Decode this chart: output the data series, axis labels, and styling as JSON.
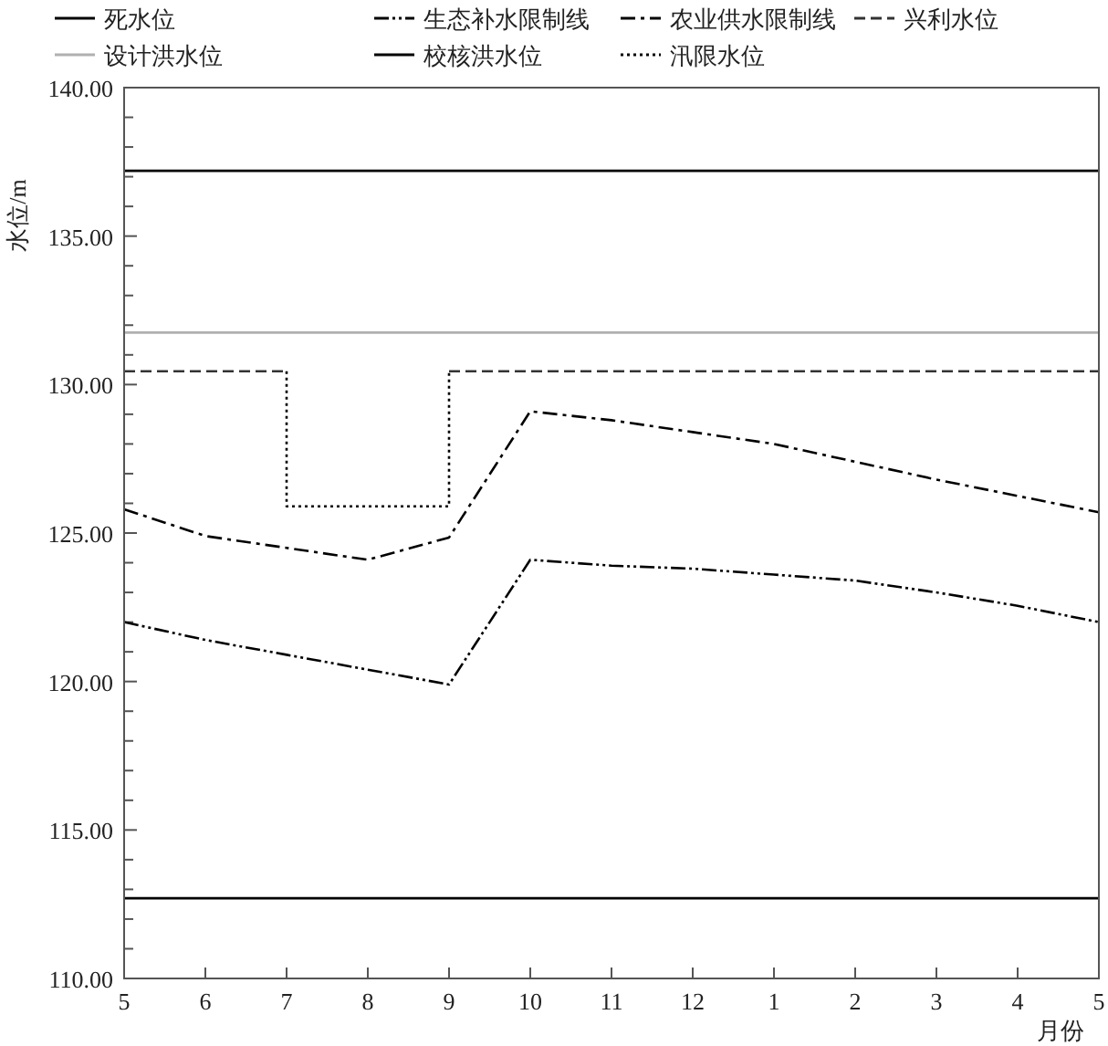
{
  "chart_data": {
    "type": "line",
    "ylabel": "水位/m",
    "xlabel": "月份",
    "categories": [
      "5",
      "6",
      "7",
      "8",
      "9",
      "10",
      "11",
      "12",
      "1",
      "2",
      "3",
      "4",
      "5"
    ],
    "ylim": [
      110,
      140
    ],
    "yticks": [
      {
        "value": 110,
        "label": "110.00"
      },
      {
        "value": 111,
        "label": null
      },
      {
        "value": 112,
        "label": null
      },
      {
        "value": 113,
        "label": null
      },
      {
        "value": 114,
        "label": null
      },
      {
        "value": 115,
        "label": "115.00"
      },
      {
        "value": 116,
        "label": null
      },
      {
        "value": 117,
        "label": null
      },
      {
        "value": 118,
        "label": null
      },
      {
        "value": 119,
        "label": null
      },
      {
        "value": 120,
        "label": "120.00"
      },
      {
        "value": 121,
        "label": null
      },
      {
        "value": 122,
        "label": null
      },
      {
        "value": 123,
        "label": null
      },
      {
        "value": 124,
        "label": null
      },
      {
        "value": 125,
        "label": "125.00"
      },
      {
        "value": 126,
        "label": null
      },
      {
        "value": 127,
        "label": null
      },
      {
        "value": 128,
        "label": null
      },
      {
        "value": 129,
        "label": null
      },
      {
        "value": 130,
        "label": "130.00"
      },
      {
        "value": 131,
        "label": null
      },
      {
        "value": 132,
        "label": null
      },
      {
        "value": 133,
        "label": null
      },
      {
        "value": 134,
        "label": null
      },
      {
        "value": 135,
        "label": "135.00"
      },
      {
        "value": 136,
        "label": null
      },
      {
        "value": 137,
        "label": null
      },
      {
        "value": 138,
        "label": null
      },
      {
        "value": 139,
        "label": null
      },
      {
        "value": 140,
        "label": "140.00"
      }
    ],
    "legend": "top",
    "grid": false,
    "marker": "none",
    "series": [
      {
        "name": "死水位",
        "color": "#000000",
        "line_style": "solid",
        "values": [
          112.7,
          112.7,
          112.7,
          112.7,
          112.7,
          112.7,
          112.7,
          112.7,
          112.7,
          112.7,
          112.7,
          112.7,
          112.7
        ]
      },
      {
        "name": "生态补水限制线",
        "color": "#000000",
        "line_style": "dashdotdot",
        "values": [
          122.0,
          121.4,
          120.9,
          120.4,
          119.9,
          124.1,
          123.9,
          123.8,
          123.6,
          123.4,
          123.0,
          122.55,
          122.0
        ]
      },
      {
        "name": "农业供水限制线",
        "color": "#000000",
        "line_style": "dashdot",
        "values": [
          125.8,
          124.9,
          124.5,
          124.1,
          124.85,
          129.1,
          128.8,
          128.4,
          128.0,
          127.4,
          126.8,
          126.25,
          125.7
        ]
      },
      {
        "name": "兴利水位",
        "color": "#333333",
        "line_style": "dashed",
        "values": [
          130.45,
          130.45,
          130.45,
          null,
          130.45,
          130.45,
          130.45,
          130.45,
          130.45,
          130.45,
          130.45,
          130.45,
          130.45
        ]
      },
      {
        "name": "设计洪水位",
        "color": "#b0b0b0",
        "line_style": "solid",
        "values": [
          131.75,
          131.75,
          131.75,
          131.75,
          131.75,
          131.75,
          131.75,
          131.75,
          131.75,
          131.75,
          131.75,
          131.75,
          131.75
        ]
      },
      {
        "name": "校核洪水位",
        "color": "#000000",
        "line_style": "solid",
        "values": [
          137.2,
          137.2,
          137.2,
          137.2,
          137.2,
          137.2,
          137.2,
          137.2,
          137.2,
          137.2,
          137.2,
          137.2,
          137.2
        ]
      },
      {
        "name": "汛限水位",
        "color": "#000000",
        "line_style": "dotted",
        "x": [
          "7",
          "7",
          "9",
          "9"
        ],
        "values": [
          130.45,
          125.9,
          125.9,
          130.45
        ]
      }
    ]
  }
}
